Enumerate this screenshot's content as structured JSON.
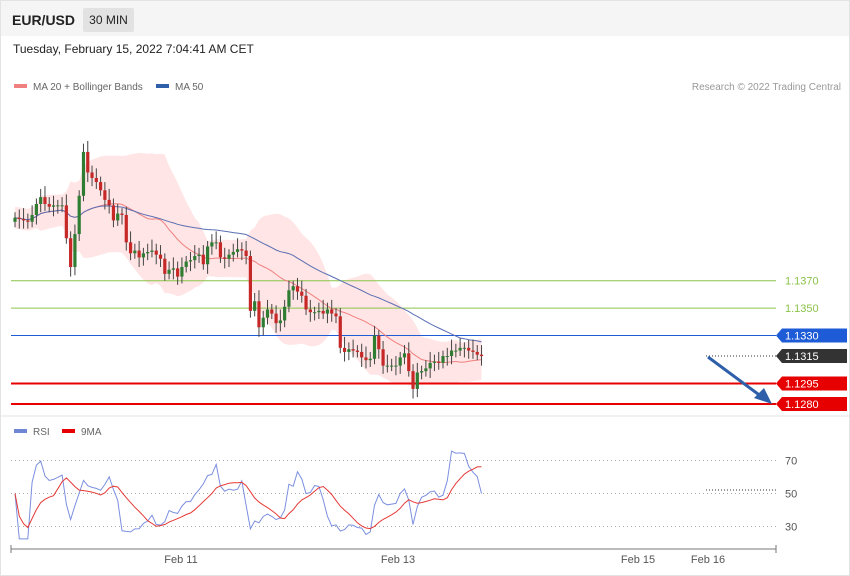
{
  "header": {
    "symbol": "EUR/USD",
    "timeframe": "30 MIN",
    "timestamp": "Tuesday, February 15, 2022 7:04:41 AM CET"
  },
  "legend": {
    "ma20_label": "MA 20 + Bollinger Bands",
    "ma50_label": "MA 50",
    "copyright": "Research © 2022 Trading Central",
    "rsi_label": "RSI",
    "rsi_ma_label": "9MA"
  },
  "colors": {
    "candle_up": "#2e7d32",
    "candle_down": "#c62828",
    "ma20": "#f08080",
    "bollinger_fill": "#ffe0e0",
    "ma50": "#5b6fb3",
    "resistance": "#8bc34a",
    "pivot": "#1e5bd6",
    "support": "#e60000",
    "current_price_tag": "#333333",
    "rsi": "#7b8fe0",
    "rsi_ma": "#e53935",
    "arrow": "#2e5fa8"
  },
  "chart_data": [
    {
      "type": "candlestick",
      "title": "EUR/USD",
      "x_ticks": [
        "Feb 11",
        "Feb 13",
        "Feb 15",
        "Feb 16"
      ],
      "ylim": [
        1.1271,
        1.1478
      ],
      "levels": [
        {
          "value": 1.137,
          "label": "1.1370",
          "kind": "resistance"
        },
        {
          "value": 1.135,
          "label": "1.1350",
          "kind": "resistance"
        },
        {
          "value": 1.133,
          "label": "1.1330",
          "kind": "pivot"
        },
        {
          "value": 1.1315,
          "label": "1.1315",
          "kind": "current"
        },
        {
          "value": 1.1295,
          "label": "1.1295",
          "kind": "support"
        },
        {
          "value": 1.128,
          "label": "1.1280",
          "kind": "support"
        }
      ],
      "close_approx": [
        1.1416,
        1.1415,
        1.1414,
        1.1413,
        1.1418,
        1.1426,
        1.1431,
        1.1426,
        1.1424,
        1.1425,
        1.1425,
        1.1425,
        1.1401,
        1.138,
        1.1404,
        1.1432,
        1.1464,
        1.1449,
        1.1445,
        1.1442,
        1.1436,
        1.1429,
        1.1425,
        1.1414,
        1.1419,
        1.1418,
        1.1398,
        1.139,
        1.1392,
        1.1387,
        1.139,
        1.1391,
        1.1392,
        1.1389,
        1.1386,
        1.1375,
        1.1378,
        1.1379,
        1.1373,
        1.138,
        1.1384,
        1.1385,
        1.1388,
        1.1389,
        1.1382,
        1.1395,
        1.1398,
        1.1398,
        1.1387,
        1.1386,
        1.1389,
        1.1391,
        1.1393,
        1.1392,
        1.1388,
        1.1348,
        1.1355,
        1.1336,
        1.1343,
        1.1349,
        1.1346,
        1.1339,
        1.1341,
        1.1351,
        1.1363,
        1.1366,
        1.1362,
        1.1359,
        1.1349,
        1.1347,
        1.1347,
        1.1348,
        1.1346,
        1.1349,
        1.1346,
        1.1344,
        1.1321,
        1.1318,
        1.132,
        1.1319,
        1.1318,
        1.1314,
        1.1312,
        1.1313,
        1.133,
        1.132,
        1.1308,
        1.1308,
        1.1308,
        1.1308,
        1.1314,
        1.1317,
        1.1304,
        1.1291,
        1.1303,
        1.1304,
        1.1306,
        1.131,
        1.1311,
        1.131,
        1.1315,
        1.1315,
        1.1319,
        1.1319,
        1.1321,
        1.1321,
        1.1319,
        1.1318,
        1.1316,
        1.1315
      ]
    },
    {
      "type": "line",
      "title": "RSI",
      "x_ticks": [
        "Feb 11",
        "Feb 13",
        "Feb 15",
        "Feb 16"
      ],
      "y_ticks": [
        70,
        50,
        30
      ],
      "ylim": [
        20,
        80
      ],
      "series": [
        {
          "name": "RSI"
        },
        {
          "name": "9MA"
        }
      ]
    }
  ]
}
